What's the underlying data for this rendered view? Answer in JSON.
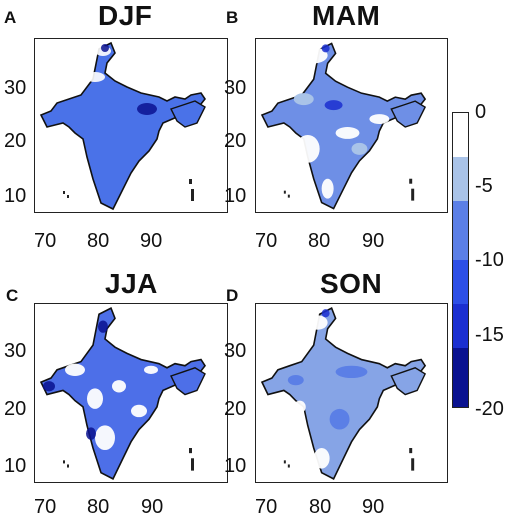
{
  "panels": [
    {
      "letter": "A",
      "season": "DJF",
      "y_ticks": [
        "30",
        "20",
        "10"
      ],
      "x_ticks": [
        "70",
        "80",
        "90"
      ]
    },
    {
      "letter": "B",
      "season": "MAM",
      "y_ticks": [
        "30",
        "20",
        "10"
      ],
      "x_ticks": [
        "70",
        "80",
        "90"
      ]
    },
    {
      "letter": "C",
      "season": "JJA",
      "y_ticks": [
        "30",
        "20",
        "10"
      ],
      "x_ticks": [
        "70",
        "80",
        "90"
      ]
    },
    {
      "letter": "D",
      "season": "SON",
      "y_ticks": [
        "30",
        "20",
        "10"
      ],
      "x_ticks": [
        "70",
        "80",
        "90"
      ]
    }
  ],
  "colorbar": {
    "ticks": [
      "0",
      "-5",
      "-10",
      "-15",
      "-20"
    ],
    "levels": [
      {
        "from": 0,
        "to": -3,
        "color": "#ffffff"
      },
      {
        "from": -3,
        "to": -6,
        "color": "#a9c3e8"
      },
      {
        "from": -6,
        "to": -10,
        "color": "#5b7fe6"
      },
      {
        "from": -10,
        "to": -13,
        "color": "#2d4fe6"
      },
      {
        "from": -13,
        "to": -16,
        "color": "#1b2fd0"
      },
      {
        "from": -16,
        "to": -20,
        "color": "#0a1290"
      }
    ]
  },
  "map_fill": {
    "DJF": "#4a72e8",
    "MAM": "#6e8fe6",
    "JJA": "#4d6fe8",
    "SON": "#86a4e6"
  }
}
